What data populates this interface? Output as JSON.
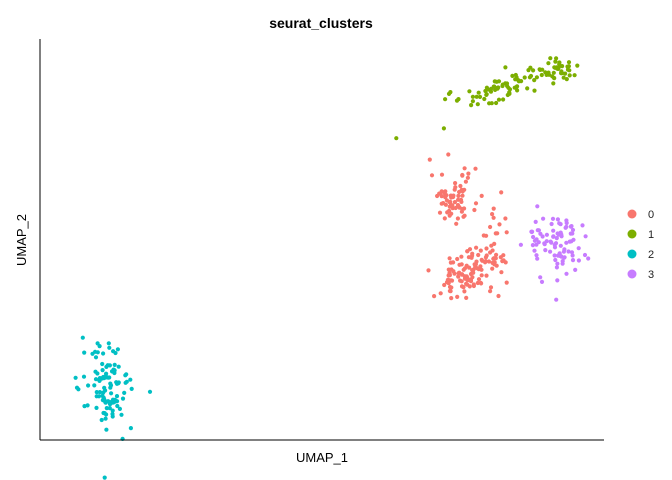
{
  "chart_data": {
    "type": "scatter",
    "title": "seurat_clusters",
    "xlabel": "UMAP_1",
    "ylabel": "UMAP_2",
    "xlim": [
      0,
      100
    ],
    "ylim": [
      0,
      100
    ],
    "x_ticks": "none",
    "y_ticks": "none",
    "grid": false,
    "legend_position": "right",
    "series": [
      {
        "name": "0",
        "color": "#F8766D",
        "clusters": [
          {
            "cx": 73.5,
            "cy": 60.5,
            "rx": 2.5,
            "ry": 3.8,
            "n": 70
          },
          {
            "cx": 75.0,
            "cy": 41.0,
            "rx": 3.2,
            "ry": 4.0,
            "n": 85
          },
          {
            "cx": 79.5,
            "cy": 44.5,
            "rx": 2.2,
            "ry": 2.6,
            "n": 35
          },
          {
            "cx": 81.0,
            "cy": 52.5,
            "rx": 1.2,
            "ry": 2.5,
            "n": 12
          }
        ]
      },
      {
        "name": "1",
        "color": "#7CAE00",
        "clusters": [
          {
            "cx": 83.0,
            "cy": 88.5,
            "rx": 6.5,
            "ry": 1.6,
            "n": 80,
            "tilt": 0.45
          },
          {
            "cx": 92.0,
            "cy": 92.5,
            "rx": 2.0,
            "ry": 1.6,
            "n": 30
          }
        ]
      },
      {
        "name": "2",
        "color": "#00BFC4",
        "clusters": [
          {
            "cx": 12.0,
            "cy": 13.0,
            "rx": 2.8,
            "ry": 6.5,
            "n": 110
          }
        ]
      },
      {
        "name": "3",
        "color": "#C77CFF",
        "clusters": [
          {
            "cx": 91.5,
            "cy": 48.5,
            "rx": 3.0,
            "ry": 5.0,
            "n": 90
          }
        ]
      }
    ]
  }
}
